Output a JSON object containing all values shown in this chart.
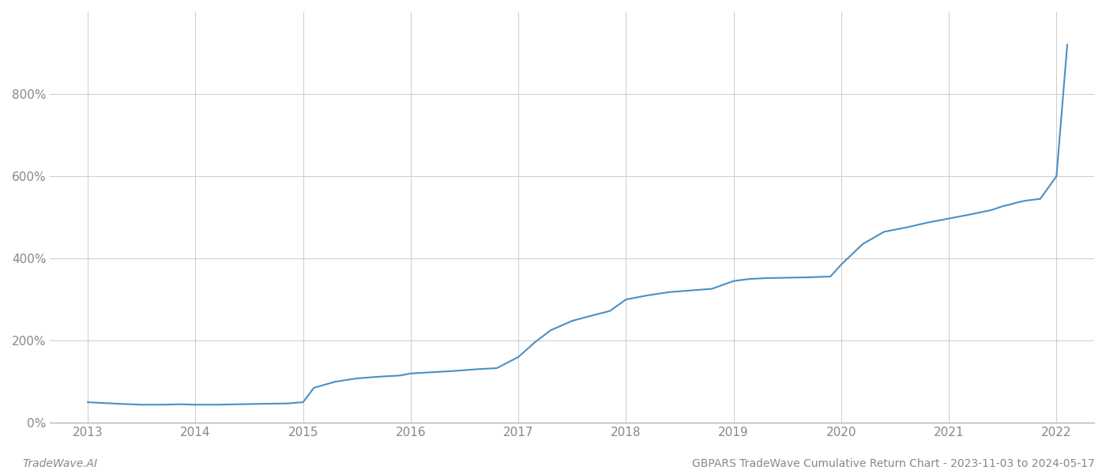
{
  "title": "GBPARS TradeWave Cumulative Return Chart - 2023-11-03 to 2024-05-17",
  "footer_left": "TradeWave.AI",
  "line_color": "#4a90c4",
  "background_color": "#ffffff",
  "grid_color": "#cccccc",
  "x_years": [
    2013,
    2014,
    2015,
    2016,
    2017,
    2018,
    2019,
    2020,
    2021,
    2022
  ],
  "data_x": [
    2013.0,
    2013.15,
    2013.3,
    2013.5,
    2013.7,
    2013.85,
    2014.0,
    2014.2,
    2014.4,
    2014.6,
    2014.85,
    2015.0,
    2015.1,
    2015.3,
    2015.5,
    2015.7,
    2015.9,
    2016.0,
    2016.2,
    2016.4,
    2016.6,
    2016.8,
    2017.0,
    2017.15,
    2017.3,
    2017.5,
    2017.7,
    2017.85,
    2018.0,
    2018.2,
    2018.4,
    2018.5,
    2018.6,
    2018.8,
    2019.0,
    2019.15,
    2019.3,
    2019.5,
    2019.7,
    2019.9,
    2020.0,
    2020.2,
    2020.4,
    2020.6,
    2020.8,
    2021.0,
    2021.2,
    2021.4,
    2021.5,
    2021.55,
    2021.65,
    2021.7,
    2021.85,
    2022.0,
    2022.1
  ],
  "data_y": [
    50,
    48,
    46,
    44,
    44,
    45,
    44,
    44,
    45,
    46,
    47,
    50,
    85,
    100,
    108,
    112,
    115,
    120,
    123,
    126,
    130,
    133,
    160,
    195,
    225,
    248,
    262,
    272,
    300,
    310,
    318,
    320,
    322,
    326,
    345,
    350,
    352,
    353,
    354,
    356,
    385,
    435,
    465,
    475,
    487,
    497,
    507,
    518,
    527,
    530,
    537,
    540,
    545,
    600,
    920
  ],
  "ylim": [
    0,
    1000
  ],
  "xlim": [
    2012.65,
    2022.35
  ],
  "yticks": [
    0,
    200,
    400,
    600,
    800
  ],
  "figsize": [
    14.0,
    6.0
  ],
  "dpi": 100
}
